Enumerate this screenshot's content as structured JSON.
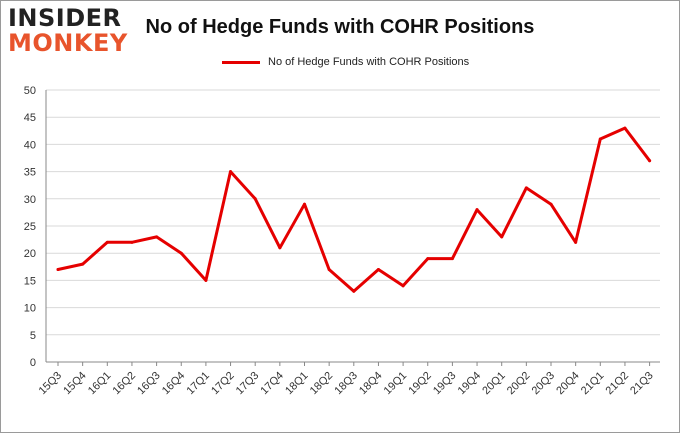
{
  "logo": {
    "line1": "INSIDER",
    "line2": "MONKEY"
  },
  "chart_data": {
    "type": "line",
    "title": "No of Hedge Funds with COHR Positions",
    "xlabel": "",
    "ylabel": "",
    "ylim": [
      0,
      50
    ],
    "yticks": [
      0,
      5,
      10,
      15,
      20,
      25,
      30,
      35,
      40,
      45,
      50
    ],
    "grid": true,
    "legend_position": "top",
    "categories": [
      "15Q3",
      "15Q4",
      "16Q1",
      "16Q2",
      "16Q3",
      "16Q4",
      "17Q1",
      "17Q2",
      "17Q3",
      "17Q4",
      "18Q1",
      "18Q2",
      "18Q3",
      "18Q4",
      "19Q1",
      "19Q2",
      "19Q3",
      "19Q4",
      "20Q1",
      "20Q2",
      "20Q3",
      "20Q4",
      "21Q1",
      "21Q2",
      "21Q3"
    ],
    "series": [
      {
        "name": "No of Hedge Funds with COHR Positions",
        "color": "#e50000",
        "values": [
          17,
          18,
          22,
          22,
          23,
          20,
          15,
          35,
          30,
          21,
          29,
          17,
          13,
          17,
          14,
          19,
          19,
          28,
          23,
          32,
          29,
          22,
          41,
          43,
          37
        ]
      }
    ]
  }
}
